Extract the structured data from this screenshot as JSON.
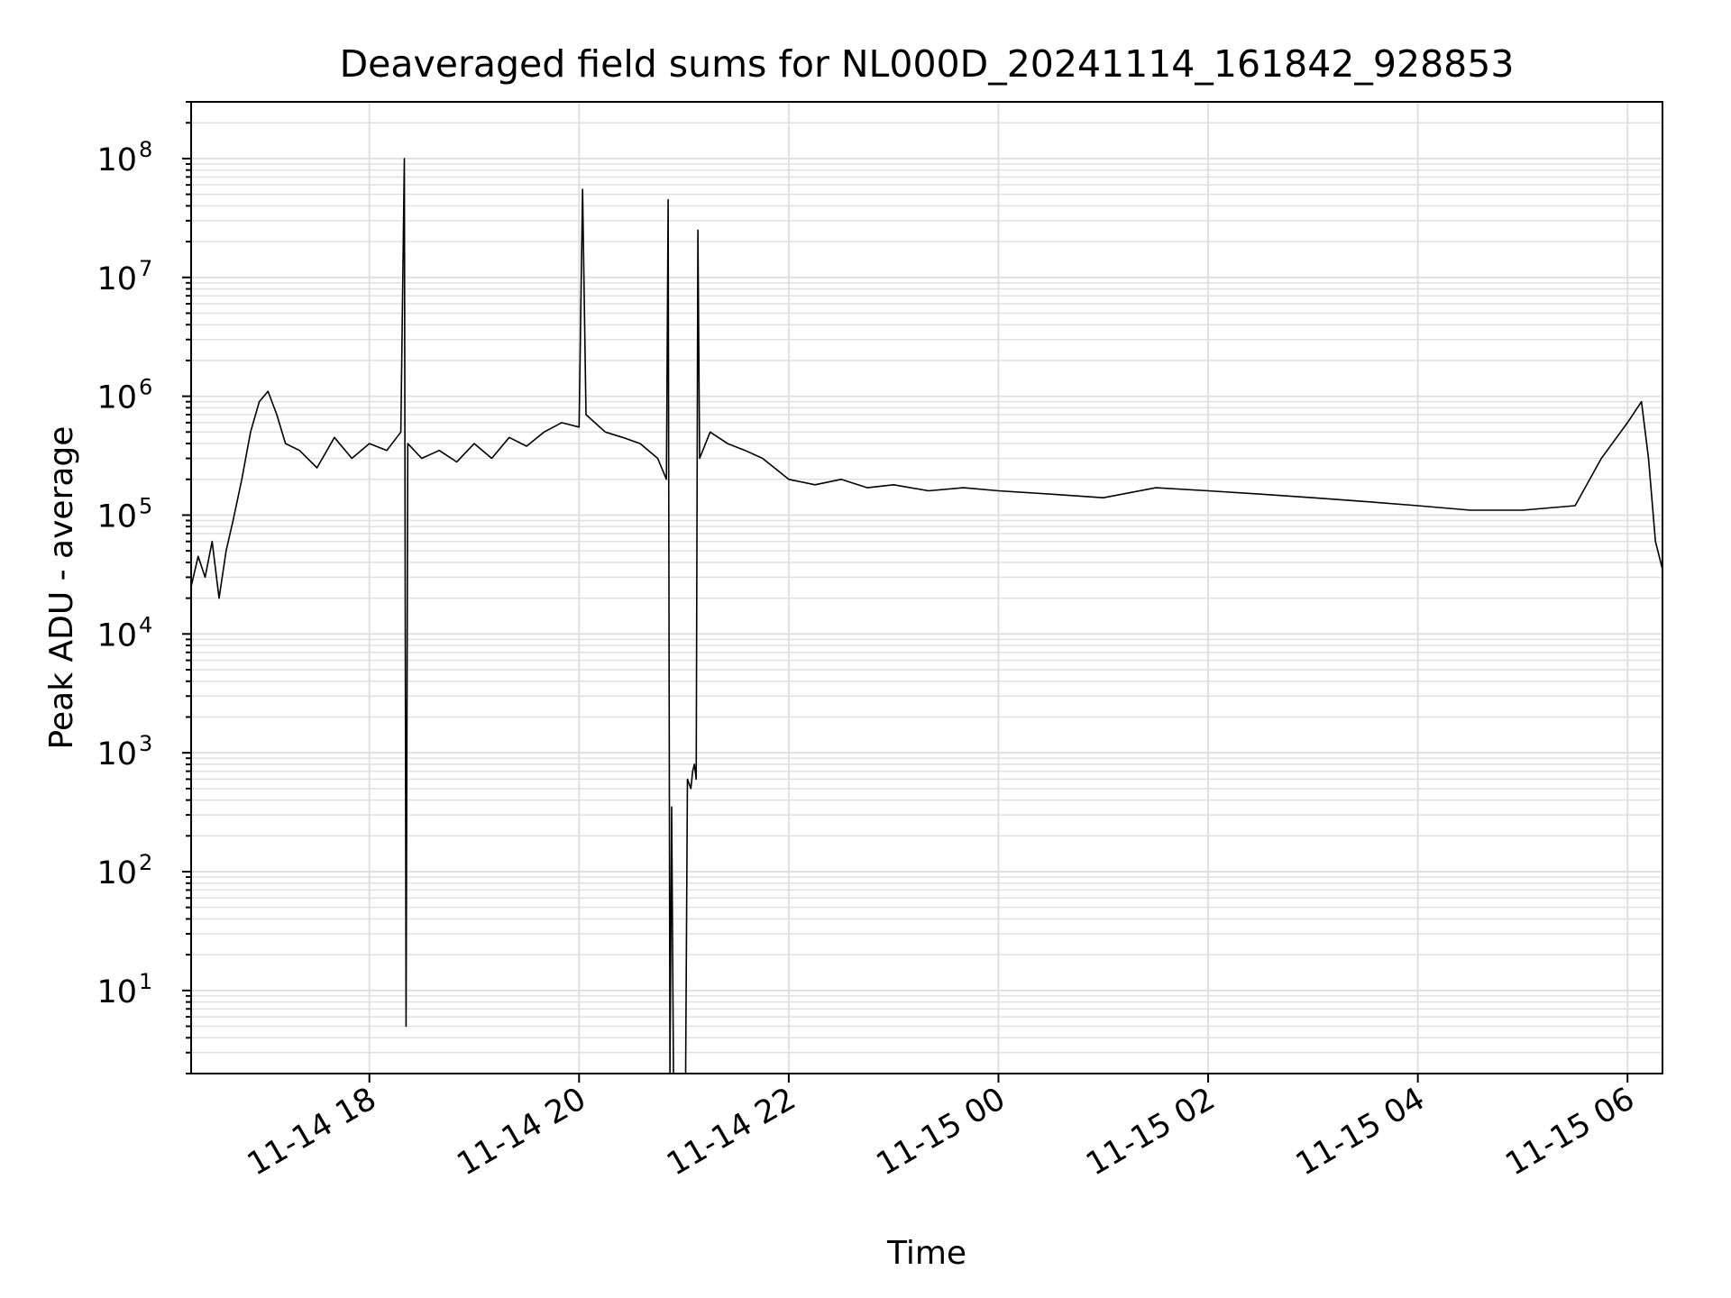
{
  "chart_data": {
    "type": "line",
    "title": "Deaveraged field sums for NL000D_20241114_161842_928853",
    "xlabel": "Time",
    "ylabel": "Peak ADU - average",
    "y_scale": "log",
    "ylim": [
      2,
      300000000
    ],
    "xlim": [
      "2024-11-14 16:18",
      "2024-11-15 06:20"
    ],
    "grid": true,
    "line_color": "#000000",
    "grid_color": "#e0e0e0",
    "x_ticks": [
      {
        "t": "2024-11-14 18:00",
        "label": "11-14 18"
      },
      {
        "t": "2024-11-14 20:00",
        "label": "11-14 20"
      },
      {
        "t": "2024-11-14 22:00",
        "label": "11-14 22"
      },
      {
        "t": "2024-11-15 00:00",
        "label": "11-15 00"
      },
      {
        "t": "2024-11-15 02:00",
        "label": "11-15 02"
      },
      {
        "t": "2024-11-15 04:00",
        "label": "11-15 04"
      },
      {
        "t": "2024-11-15 06:00",
        "label": "11-15 06"
      }
    ],
    "y_ticks": [
      {
        "value": 10,
        "base": "10",
        "exp": "1"
      },
      {
        "value": 100,
        "base": "10",
        "exp": "2"
      },
      {
        "value": 1000,
        "base": "10",
        "exp": "3"
      },
      {
        "value": 10000,
        "base": "10",
        "exp": "4"
      },
      {
        "value": 100000,
        "base": "10",
        "exp": "5"
      },
      {
        "value": 1000000,
        "base": "10",
        "exp": "6"
      },
      {
        "value": 10000000,
        "base": "10",
        "exp": "7"
      },
      {
        "value": 100000000,
        "base": "10",
        "exp": "8"
      }
    ],
    "series": [
      {
        "points": [
          [
            "2024-11-14 16:18",
            25000
          ],
          [
            "2024-11-14 16:22",
            45000
          ],
          [
            "2024-11-14 16:26",
            30000
          ],
          [
            "2024-11-14 16:30",
            60000
          ],
          [
            "2024-11-14 16:34",
            20000
          ],
          [
            "2024-11-14 16:38",
            50000
          ],
          [
            "2024-11-14 16:42",
            90000
          ],
          [
            "2024-11-14 16:47",
            200000
          ],
          [
            "2024-11-14 16:52",
            500000
          ],
          [
            "2024-11-14 16:57",
            900000
          ],
          [
            "2024-11-14 17:02",
            1100000
          ],
          [
            "2024-11-14 17:07",
            700000
          ],
          [
            "2024-11-14 17:12",
            400000
          ],
          [
            "2024-11-14 17:20",
            350000
          ],
          [
            "2024-11-14 17:30",
            250000
          ],
          [
            "2024-11-14 17:40",
            450000
          ],
          [
            "2024-11-14 17:50",
            300000
          ],
          [
            "2024-11-14 18:00",
            400000
          ],
          [
            "2024-11-14 18:10",
            350000
          ],
          [
            "2024-11-14 18:18",
            500000
          ],
          [
            "2024-11-14 18:20",
            100000000
          ],
          [
            "2024-11-14 18:21",
            5
          ],
          [
            "2024-11-14 18:22",
            400000
          ],
          [
            "2024-11-14 18:30",
            300000
          ],
          [
            "2024-11-14 18:40",
            350000
          ],
          [
            "2024-11-14 18:50",
            280000
          ],
          [
            "2024-11-14 19:00",
            400000
          ],
          [
            "2024-11-14 19:10",
            300000
          ],
          [
            "2024-11-14 19:20",
            450000
          ],
          [
            "2024-11-14 19:30",
            380000
          ],
          [
            "2024-11-14 19:40",
            500000
          ],
          [
            "2024-11-14 19:50",
            600000
          ],
          [
            "2024-11-14 20:00",
            550000
          ],
          [
            "2024-11-14 20:02",
            55000000
          ],
          [
            "2024-11-14 20:04",
            700000
          ],
          [
            "2024-11-14 20:15",
            500000
          ],
          [
            "2024-11-14 20:25",
            450000
          ],
          [
            "2024-11-14 20:35",
            400000
          ],
          [
            "2024-11-14 20:45",
            300000
          ],
          [
            "2024-11-14 20:50",
            200000
          ],
          [
            "2024-11-14 20:51",
            45000000
          ],
          [
            "2024-11-14 20:52",
            2
          ],
          [
            "2024-11-14 20:53",
            350
          ],
          [
            "2024-11-14 20:54",
            2
          ],
          [
            "2024-11-14 21:01",
            2
          ],
          [
            "2024-11-14 21:02",
            600
          ],
          [
            "2024-11-14 21:04",
            500
          ],
          [
            "2024-11-14 21:05",
            700
          ],
          [
            "2024-11-14 21:06",
            800
          ],
          [
            "2024-11-14 21:07",
            600
          ],
          [
            "2024-11-14 21:08",
            25000000
          ],
          [
            "2024-11-14 21:09",
            300000
          ],
          [
            "2024-11-14 21:15",
            500000
          ],
          [
            "2024-11-14 21:25",
            400000
          ],
          [
            "2024-11-14 21:35",
            350000
          ],
          [
            "2024-11-14 21:45",
            300000
          ],
          [
            "2024-11-14 22:00",
            200000
          ],
          [
            "2024-11-14 22:15",
            180000
          ],
          [
            "2024-11-14 22:30",
            200000
          ],
          [
            "2024-11-14 22:45",
            170000
          ],
          [
            "2024-11-14 23:00",
            180000
          ],
          [
            "2024-11-14 23:20",
            160000
          ],
          [
            "2024-11-14 23:40",
            170000
          ],
          [
            "2024-11-15 00:00",
            160000
          ],
          [
            "2024-11-15 00:30",
            150000
          ],
          [
            "2024-11-15 01:00",
            140000
          ],
          [
            "2024-11-15 01:30",
            170000
          ],
          [
            "2024-11-15 02:00",
            160000
          ],
          [
            "2024-11-15 02:30",
            150000
          ],
          [
            "2024-11-15 03:00",
            140000
          ],
          [
            "2024-11-15 03:30",
            130000
          ],
          [
            "2024-11-15 04:00",
            120000
          ],
          [
            "2024-11-15 04:30",
            110000
          ],
          [
            "2024-11-15 05:00",
            110000
          ],
          [
            "2024-11-15 05:30",
            120000
          ],
          [
            "2024-11-15 05:45",
            300000
          ],
          [
            "2024-11-15 06:00",
            600000
          ],
          [
            "2024-11-15 06:08",
            900000
          ],
          [
            "2024-11-15 06:12",
            300000
          ],
          [
            "2024-11-15 06:16",
            60000
          ],
          [
            "2024-11-15 06:20",
            35000
          ]
        ]
      }
    ]
  }
}
